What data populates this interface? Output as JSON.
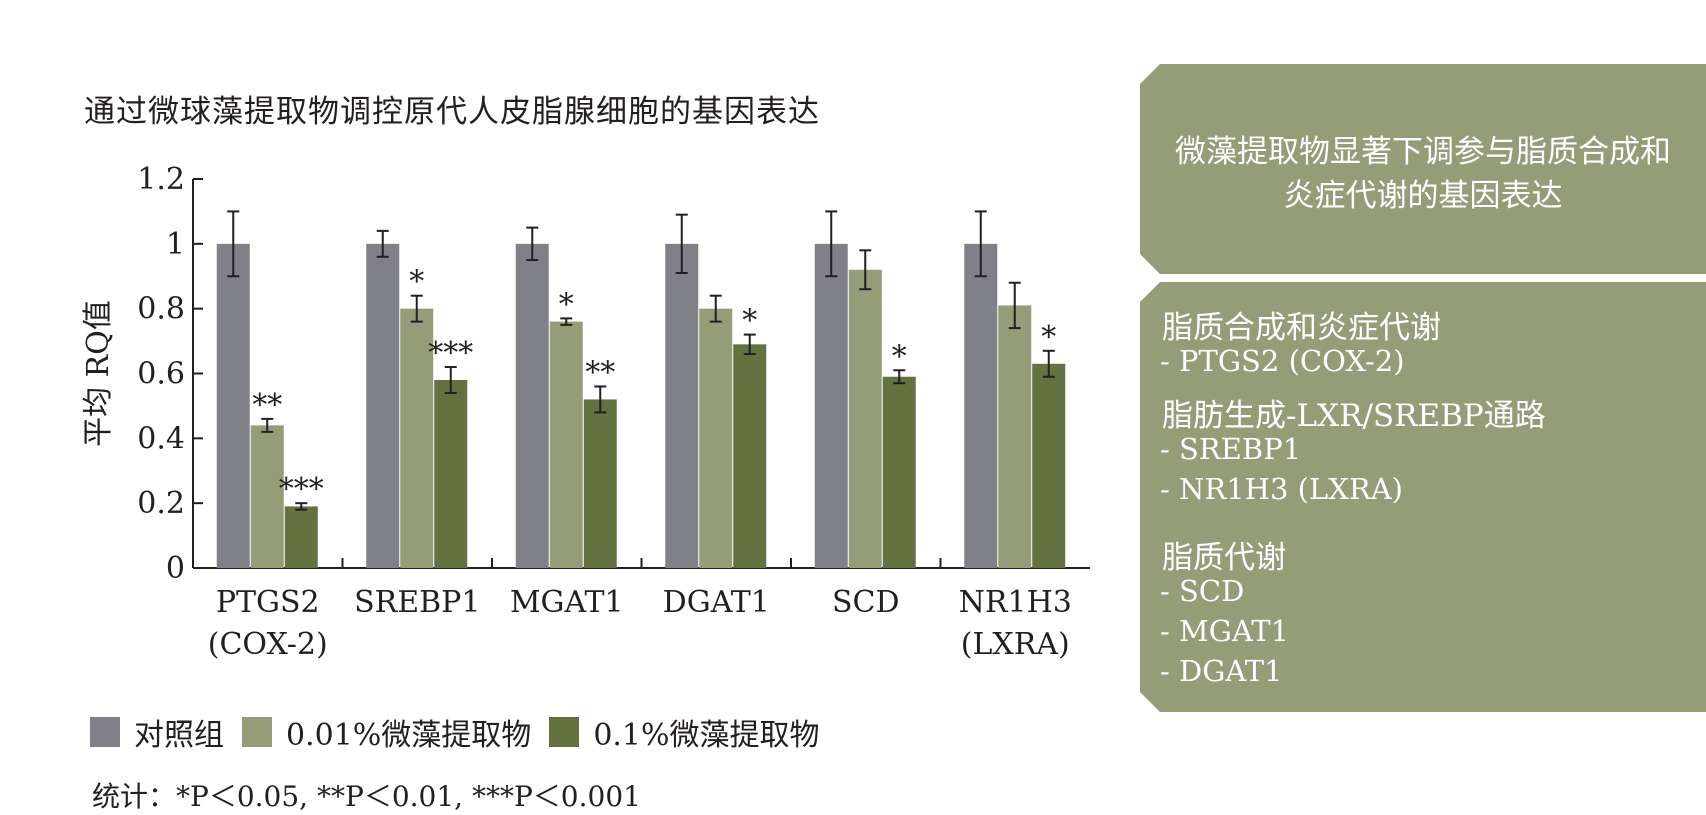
{
  "chart_data": {
    "type": "bar",
    "title": "通过微球藻提取物调控原代人皮脂腺细胞的基因表达",
    "ylabel": "平均 RQ值",
    "xlabel": "",
    "ylim": [
      0,
      1.2
    ],
    "yticks": [
      "0",
      "0.2",
      "0.4",
      "0.6",
      "0.8",
      "1",
      "1.2"
    ],
    "ytick_values": [
      0,
      0.2,
      0.4,
      0.6,
      0.8,
      1.0,
      1.2
    ],
    "categories": [
      {
        "line1": "PTGS2",
        "line2": "(COX-2)"
      },
      {
        "line1": "SREBP1",
        "line2": ""
      },
      {
        "line1": "MGAT1",
        "line2": ""
      },
      {
        "line1": "DGAT1",
        "line2": ""
      },
      {
        "line1": "SCD",
        "line2": ""
      },
      {
        "line1": "NR1H3",
        "line2": "(LXRA)"
      }
    ],
    "series": [
      {
        "name": "对照组",
        "color": "#808088",
        "values": [
          1.0,
          1.0,
          1.0,
          1.0,
          1.0,
          1.0
        ],
        "errors": [
          0.1,
          0.04,
          0.05,
          0.09,
          0.1,
          0.1
        ],
        "significance": [
          "",
          "",
          "",
          "",
          "",
          ""
        ]
      },
      {
        "name": "0.01%微藻提取物",
        "color": "#949c78",
        "values": [
          0.44,
          0.8,
          0.76,
          0.8,
          0.92,
          0.81
        ],
        "errors": [
          0.02,
          0.04,
          0.01,
          0.04,
          0.06,
          0.07
        ],
        "significance": [
          "**",
          "*",
          "*",
          "",
          "",
          ""
        ]
      },
      {
        "name": "0.1%微藻提取物",
        "color": "#637240",
        "values": [
          0.19,
          0.58,
          0.52,
          0.69,
          0.59,
          0.63
        ],
        "errors": [
          0.01,
          0.04,
          0.04,
          0.03,
          0.02,
          0.04
        ],
        "significance": [
          "***",
          "***",
          "**",
          "*",
          "*",
          "*"
        ]
      }
    ],
    "legend_position": "bottom",
    "grid": false
  },
  "legend": {
    "items": [
      {
        "label": "对照组",
        "color": "#808088"
      },
      {
        "label": "0.01%微藻提取物",
        "color": "#949c78"
      },
      {
        "label": "0.1%微藻提取物",
        "color": "#637240"
      }
    ]
  },
  "stats_note": "统计：*P＜0.05, **P＜0.01, ***P＜0.001",
  "summary_panel": {
    "text": "微藻提取物显著下调参与脂质合成和炎症代谢的基因表达"
  },
  "pathway_panel": {
    "groups": [
      {
        "title": "脂质合成和炎症代谢",
        "items": [
          "- PTGS2 (COX-2)"
        ]
      },
      {
        "title": "脂肪生成-LXR/SREBP通路",
        "items": [
          "- SREBP1",
          "- NR1H3 (LXRA)"
        ]
      },
      {
        "title": "脂质代谢",
        "items": [
          "- SCD",
          "- MGAT1",
          "- DGAT1"
        ]
      }
    ]
  }
}
